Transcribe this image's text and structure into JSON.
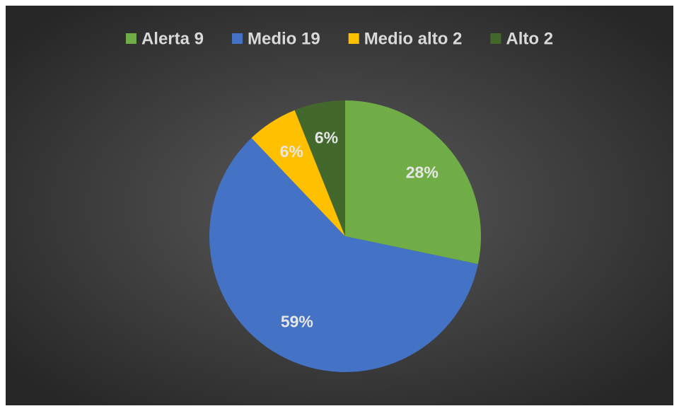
{
  "chart_data": {
    "type": "pie",
    "categories": [
      "Alerta 9",
      "Medio 19",
      "Medio alto 2",
      "Alto 2"
    ],
    "values": [
      28,
      59,
      6,
      6
    ],
    "value_labels": [
      "28%",
      "59%",
      "6%",
      "6%"
    ],
    "colors": [
      "#70ad47",
      "#4472c4",
      "#ffc000",
      "#43682b"
    ],
    "legend": "top"
  }
}
